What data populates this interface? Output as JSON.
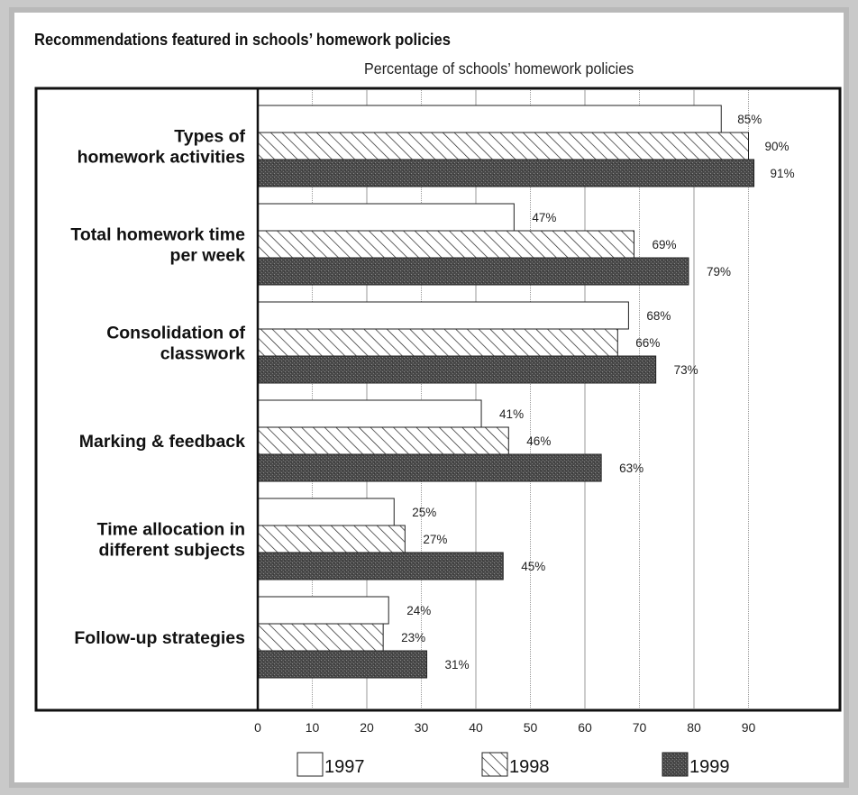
{
  "chart_data": {
    "type": "bar",
    "orientation": "horizontal",
    "title": "Recommendations featured in schools’ homework policies",
    "subtitle": "Percentage of schools’ homework policies",
    "categories": [
      [
        "Types of",
        "homework activities"
      ],
      [
        "Total homework time",
        "per week"
      ],
      [
        "Consolidation of",
        "classwork"
      ],
      [
        "Marking & feedback"
      ],
      [
        "Time allocation in",
        "different subjects"
      ],
      [
        "Follow-up strategies"
      ]
    ],
    "series": [
      {
        "name": "1997",
        "values": [
          85,
          47,
          68,
          41,
          25,
          24
        ],
        "labels": [
          "85%",
          "47%",
          "68%",
          "41%",
          "25%",
          "24%"
        ],
        "pattern": "blank"
      },
      {
        "name": "1998",
        "values": [
          90,
          69,
          66,
          46,
          27,
          23
        ],
        "labels": [
          "90%",
          "69%",
          "66%",
          "46%",
          "27%",
          "23%"
        ],
        "pattern": "hatched"
      },
      {
        "name": "1999",
        "values": [
          91,
          79,
          73,
          63,
          45,
          31
        ],
        "labels": [
          "91%",
          "79%",
          "73%",
          "63%",
          "45%",
          "31%"
        ],
        "pattern": "dark-stipple"
      }
    ],
    "x_ticks": [
      "0",
      "10",
      "20",
      "30",
      "40",
      "50",
      "60",
      "70",
      "80",
      "90"
    ],
    "xlim": [
      0,
      91
    ],
    "grid": true,
    "legend_position": "bottom"
  }
}
